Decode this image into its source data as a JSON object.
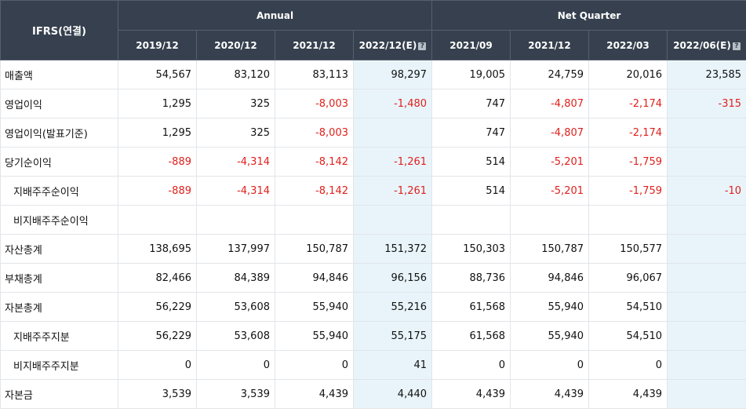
{
  "header": {
    "ifrs_label": "IFRS(연결)",
    "annual_label": "Annual",
    "quarter_label": "Net Quarter",
    "annual_periods": [
      "2019/12",
      "2020/12",
      "2021/12",
      "2022/12(E)"
    ],
    "quarter_periods": [
      "2021/09",
      "2021/12",
      "2022/03",
      "2022/06(E)"
    ]
  },
  "rows": [
    {
      "label": "매출액",
      "indent": false,
      "values": [
        "54,567",
        "83,120",
        "83,113",
        "98,297",
        "19,005",
        "24,759",
        "20,016",
        "23,585"
      ]
    },
    {
      "label": "영업이익",
      "indent": false,
      "values": [
        "1,295",
        "325",
        "-8,003",
        "-1,480",
        "747",
        "-4,807",
        "-2,174",
        "-315"
      ]
    },
    {
      "label": "영업이익(발표기준)",
      "indent": false,
      "values": [
        "1,295",
        "325",
        "-8,003",
        "",
        "747",
        "-4,807",
        "-2,174",
        ""
      ]
    },
    {
      "label": "당기순이익",
      "indent": false,
      "values": [
        "-889",
        "-4,314",
        "-8,142",
        "-1,261",
        "514",
        "-5,201",
        "-1,759",
        ""
      ]
    },
    {
      "label": "지배주주순이익",
      "indent": true,
      "values": [
        "-889",
        "-4,314",
        "-8,142",
        "-1,261",
        "514",
        "-5,201",
        "-1,759",
        "-10"
      ]
    },
    {
      "label": "비지배주주순이익",
      "indent": true,
      "values": [
        "",
        "",
        "",
        "",
        "",
        "",
        "",
        ""
      ]
    },
    {
      "label": "자산총계",
      "indent": false,
      "values": [
        "138,695",
        "137,997",
        "150,787",
        "151,372",
        "150,303",
        "150,787",
        "150,577",
        ""
      ]
    },
    {
      "label": "부채총계",
      "indent": false,
      "values": [
        "82,466",
        "84,389",
        "94,846",
        "96,156",
        "88,736",
        "94,846",
        "96,067",
        ""
      ]
    },
    {
      "label": "자본총계",
      "indent": false,
      "values": [
        "56,229",
        "53,608",
        "55,940",
        "55,216",
        "61,568",
        "55,940",
        "54,510",
        ""
      ]
    },
    {
      "label": "지배주주지분",
      "indent": true,
      "values": [
        "56,229",
        "53,608",
        "55,940",
        "55,175",
        "61,568",
        "55,940",
        "54,510",
        ""
      ]
    },
    {
      "label": "비지배주주지분",
      "indent": true,
      "values": [
        "0",
        "0",
        "0",
        "41",
        "0",
        "0",
        "0",
        ""
      ]
    },
    {
      "label": "자본금",
      "indent": false,
      "values": [
        "3,539",
        "3,539",
        "4,439",
        "4,440",
        "4,439",
        "4,439",
        "4,439",
        ""
      ]
    }
  ],
  "colors": {
    "header_bg": "#36404e",
    "negative": "#e0201c",
    "estimate_bg": "#e8f4fa"
  },
  "icons": {
    "estimate_info": "question-icon"
  }
}
